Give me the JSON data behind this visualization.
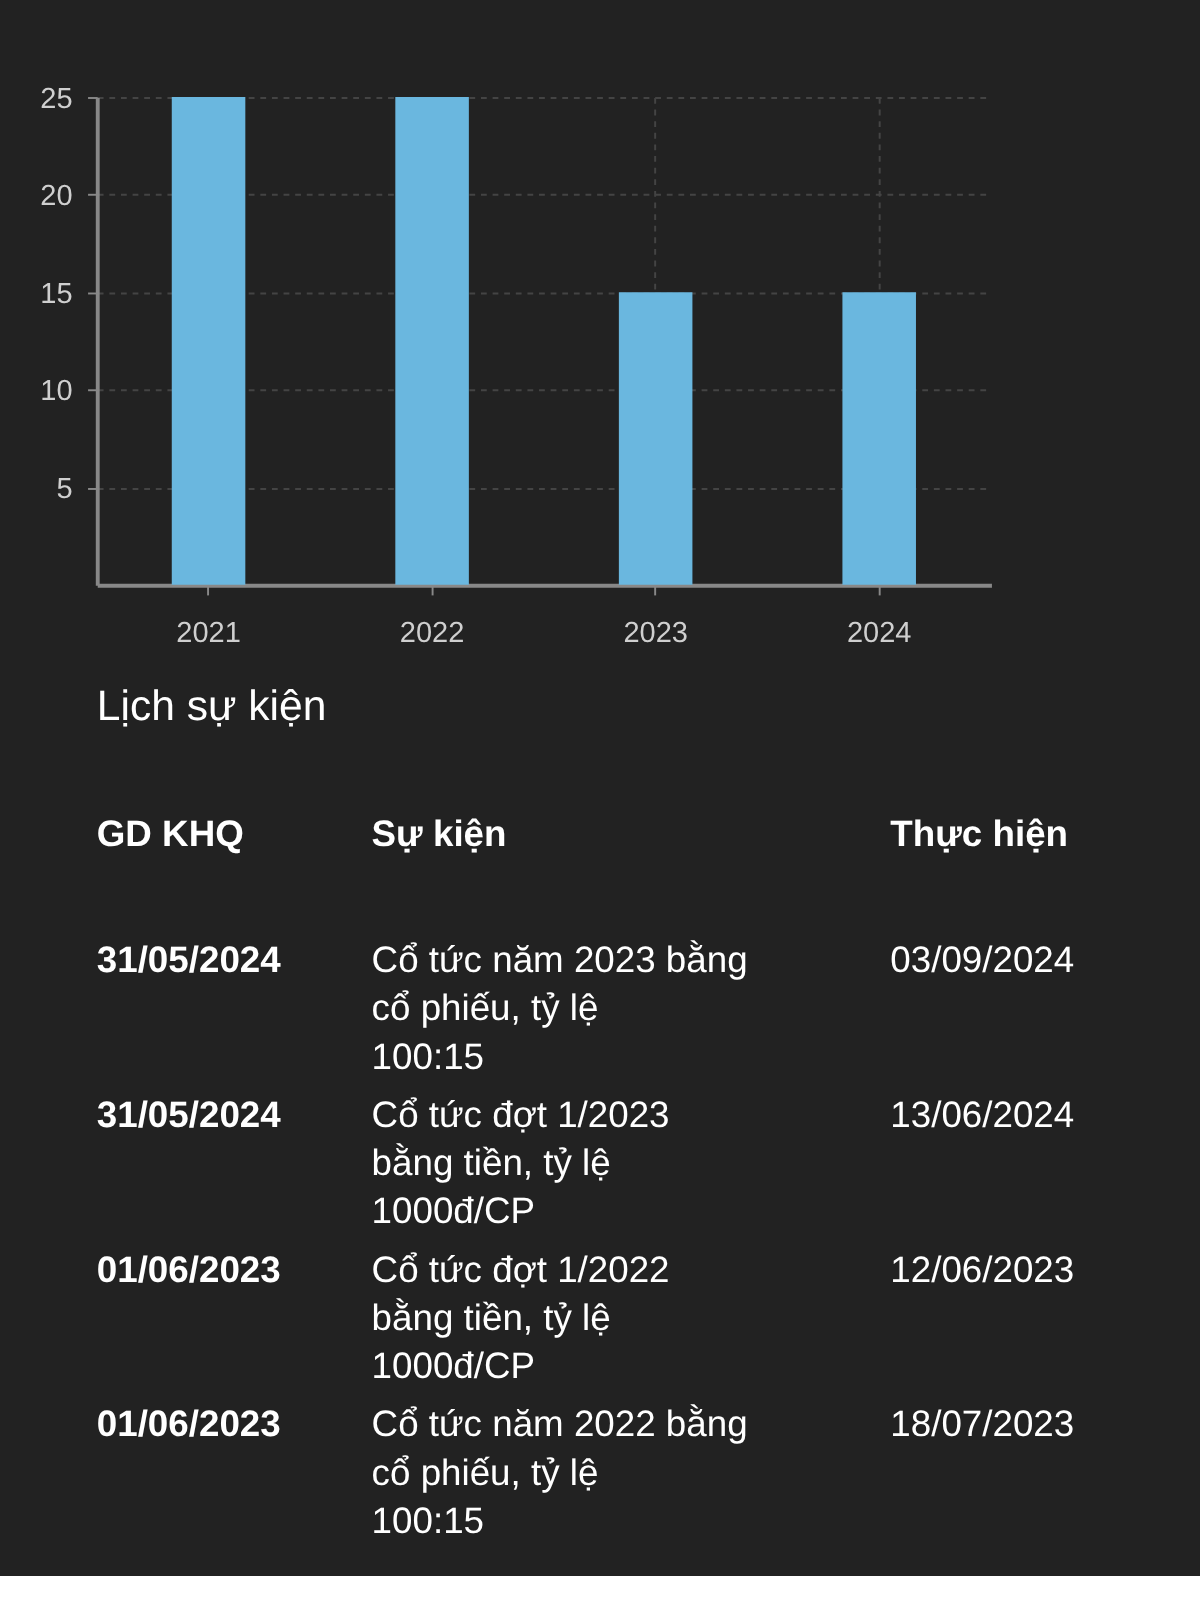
{
  "chart_data": [
    {
      "type": "bar",
      "categories": [
        "2021",
        "2022",
        "2023",
        "2024"
      ],
      "values": [
        25,
        25,
        15,
        15
      ],
      "color": "#6ab7df",
      "ylim": [
        0,
        25
      ],
      "yticks": [
        5,
        10,
        15,
        20,
        25
      ],
      "grid": true
    },
    {
      "type": "other",
      "title": "Lịch sự kiện",
      "annotations": [
        "GD KHQ",
        "Sự kiện",
        "Thực hiện",
        "31/05/2024",
        "Cổ tức năm 2023 bằng cổ phiếu, tỷ lệ 100:15",
        "03/09/2024",
        "31/05/2024",
        "Cổ tức đợt 1/2023 bằng tiền, tỷ lệ 1000đ/CP",
        "13/06/2024",
        "01/06/2023",
        "Cổ tức đợt 1/2022 bằng tiền, tỷ lệ 1000đ/CP",
        "12/06/2023",
        "01/06/2023",
        "Cổ tức năm 2022 bằng cổ phiếu, tỷ lệ 100:15",
        "18/07/2023"
      ]
    }
  ]
}
